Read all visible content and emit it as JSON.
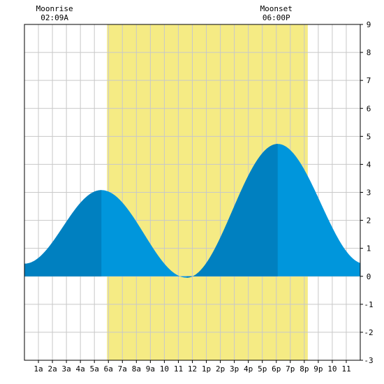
{
  "chart_data": {
    "type": "area",
    "x_unit": "hour of day",
    "y_unit": "ft",
    "xlim": [
      0,
      24
    ],
    "ylim": [
      -3,
      9
    ],
    "y_ticks": [
      -3,
      -2,
      -1,
      0,
      1,
      2,
      3,
      4,
      5,
      6,
      7,
      8,
      9
    ],
    "x_ticks": [
      {
        "hour": 1,
        "label": "1a"
      },
      {
        "hour": 2,
        "label": "2a"
      },
      {
        "hour": 3,
        "label": "3a"
      },
      {
        "hour": 4,
        "label": "4a"
      },
      {
        "hour": 5,
        "label": "5a"
      },
      {
        "hour": 6,
        "label": "6a"
      },
      {
        "hour": 7,
        "label": "7a"
      },
      {
        "hour": 8,
        "label": "8a"
      },
      {
        "hour": 9,
        "label": "9a"
      },
      {
        "hour": 10,
        "label": "10"
      },
      {
        "hour": 11,
        "label": "11"
      },
      {
        "hour": 12,
        "label": "12"
      },
      {
        "hour": 13,
        "label": "1p"
      },
      {
        "hour": 14,
        "label": "2p"
      },
      {
        "hour": 15,
        "label": "3p"
      },
      {
        "hour": 16,
        "label": "4p"
      },
      {
        "hour": 17,
        "label": "5p"
      },
      {
        "hour": 18,
        "label": "6p"
      },
      {
        "hour": 19,
        "label": "7p"
      },
      {
        "hour": 20,
        "label": "8p"
      },
      {
        "hour": 21,
        "label": "9p"
      },
      {
        "hour": 22,
        "label": "10"
      },
      {
        "hour": 23,
        "label": "11"
      }
    ],
    "grid": true,
    "daylight": {
      "start_hour": 5.9,
      "end_hour": 20.25
    },
    "events": [
      {
        "name": "Moonrise",
        "time": "02:09A",
        "hour": 2.15
      },
      {
        "name": "Moonset",
        "time": "06:00P",
        "hour": 18.0
      }
    ],
    "extremes": [
      {
        "type": "low",
        "hour": 0.0,
        "height": 0.45
      },
      {
        "type": "high",
        "hour": 5.5,
        "height": 3.08
      },
      {
        "type": "low",
        "hour": 11.6,
        "height": -0.05
      },
      {
        "type": "high",
        "hour": 18.1,
        "height": 4.73
      },
      {
        "type": "low",
        "hour": 24.3,
        "height": 0.45
      }
    ],
    "colors": {
      "water": "#0096dc",
      "water_dark": "#0080c0",
      "daylight": "#f5eb84",
      "grid": "#c8c8c8",
      "frame": "#000000",
      "background": "#ffffff"
    }
  }
}
